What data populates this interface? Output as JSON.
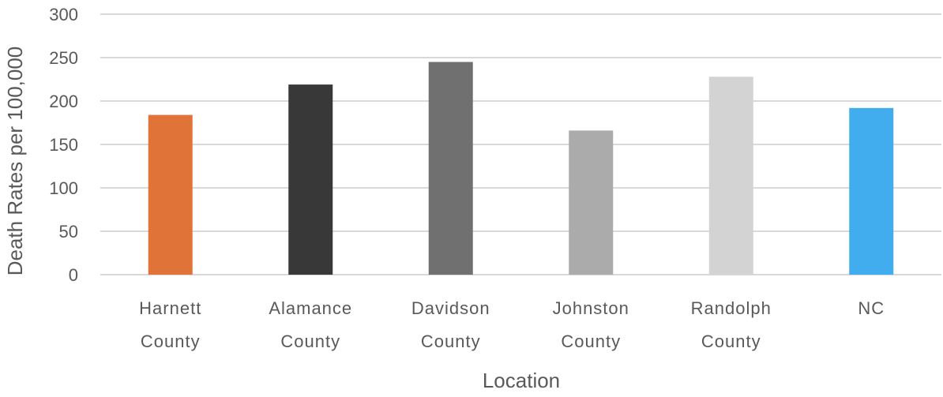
{
  "chart_data": {
    "type": "bar",
    "title": "",
    "xlabel": "Location",
    "ylabel": "Death Rates per 100,000",
    "categories": [
      [
        "Harnett",
        "County"
      ],
      [
        "Alamance",
        "County"
      ],
      [
        "Davidson",
        "County"
      ],
      [
        "Johnston",
        "County"
      ],
      [
        "Randolph",
        "County"
      ],
      [
        "NC"
      ]
    ],
    "values": [
      184,
      219,
      245,
      166,
      228,
      192
    ],
    "colors": [
      "#E07338",
      "#383838",
      "#707070",
      "#ABABAB",
      "#D3D3D3",
      "#41ADEE"
    ],
    "ylim": [
      0,
      300
    ],
    "yticks": [
      0,
      50,
      100,
      150,
      200,
      250,
      300
    ],
    "grid": true,
    "legend": "none"
  }
}
